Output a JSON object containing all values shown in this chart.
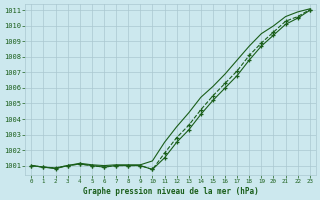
{
  "title": "Graphe pression niveau de la mer (hPa)",
  "bg_color": "#cce8ee",
  "grid_color": "#aac8d0",
  "line_color": "#1a5e1a",
  "x_min": -0.5,
  "x_max": 23.5,
  "y_min": 1000.4,
  "y_max": 1011.4,
  "yticks": [
    1001,
    1002,
    1003,
    1004,
    1005,
    1006,
    1007,
    1008,
    1009,
    1010,
    1011
  ],
  "xticks": [
    0,
    1,
    2,
    3,
    4,
    5,
    6,
    7,
    8,
    9,
    10,
    11,
    12,
    13,
    14,
    15,
    16,
    17,
    18,
    19,
    20,
    21,
    22,
    23
  ],
  "line1_x": [
    0,
    1,
    2,
    3,
    4,
    5,
    6,
    7,
    8,
    9,
    10,
    11,
    12,
    13,
    14,
    15,
    16,
    17,
    18,
    19,
    20,
    21,
    22,
    23
  ],
  "line1_y": [
    1001.0,
    1000.9,
    1000.8,
    1001.0,
    1001.1,
    1001.0,
    1000.9,
    1001.0,
    1001.0,
    1001.0,
    1000.75,
    1001.5,
    1002.5,
    1003.3,
    1004.3,
    1005.2,
    1006.0,
    1006.8,
    1007.8,
    1008.7,
    1009.4,
    1010.1,
    1010.5,
    1011.0
  ],
  "line2_x": [
    0,
    1,
    2,
    3,
    4,
    5,
    6,
    7,
    8,
    9,
    10,
    11,
    12,
    13,
    14,
    15,
    16,
    17,
    18,
    19,
    20,
    21,
    22,
    23
  ],
  "line2_y": [
    1001.0,
    1000.9,
    1000.85,
    1001.0,
    1001.1,
    1001.0,
    1000.9,
    1001.0,
    1001.0,
    1001.0,
    1000.75,
    1001.8,
    1002.8,
    1003.6,
    1004.6,
    1005.5,
    1006.3,
    1007.1,
    1008.1,
    1008.9,
    1009.6,
    1010.3,
    1010.6,
    1011.05
  ],
  "line3_x": [
    0,
    1,
    2,
    3,
    4,
    5,
    6,
    7,
    8,
    9,
    10,
    11,
    12,
    13,
    14,
    15,
    16,
    17,
    18,
    19,
    20,
    21,
    22,
    23
  ],
  "line3_y": [
    1001.0,
    1000.9,
    1000.85,
    1001.0,
    1001.15,
    1001.05,
    1001.0,
    1001.05,
    1001.05,
    1001.05,
    1001.3,
    1002.5,
    1003.5,
    1004.4,
    1005.4,
    1006.1,
    1006.9,
    1007.8,
    1008.7,
    1009.5,
    1010.0,
    1010.6,
    1010.9,
    1011.1
  ]
}
